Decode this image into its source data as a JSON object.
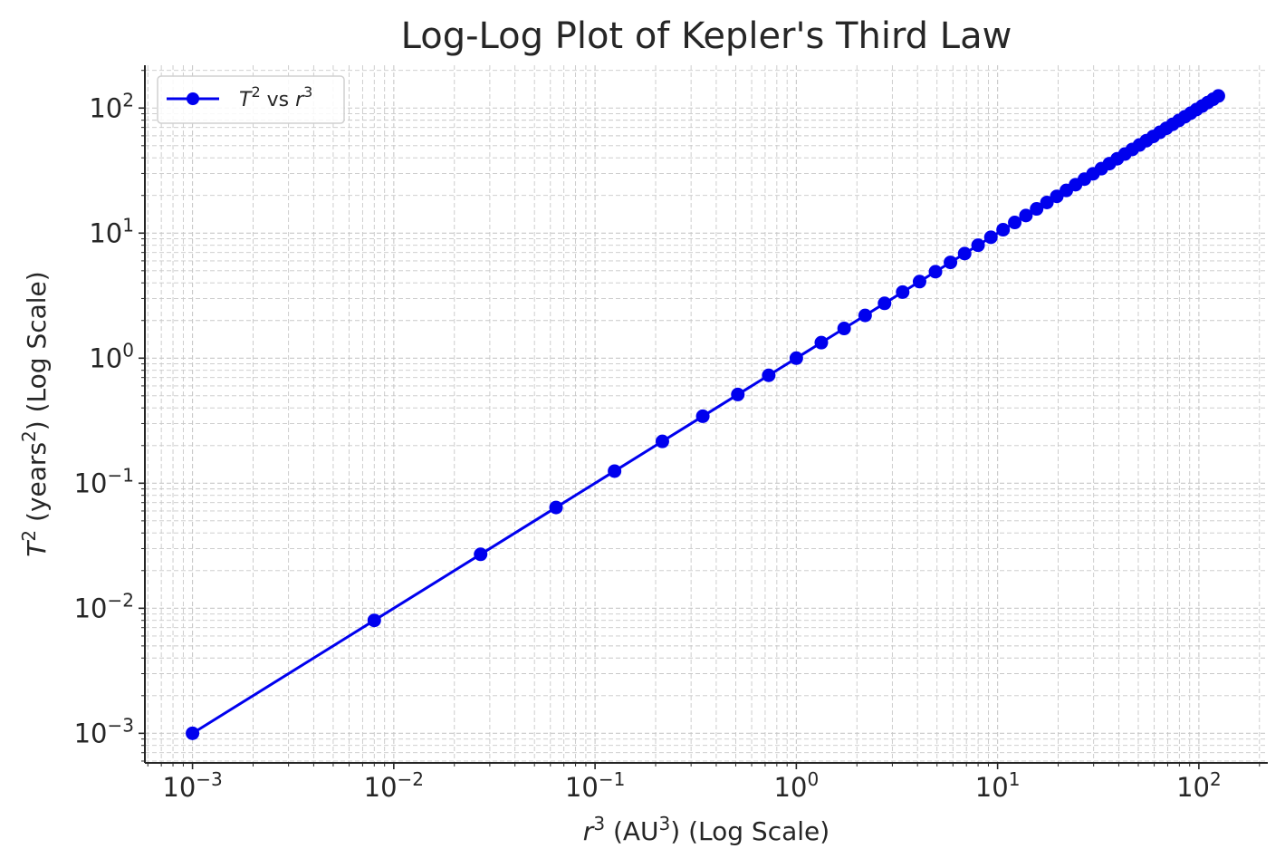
{
  "chart_data": {
    "type": "line",
    "title": "Log-Log Plot of Kepler's Third Law",
    "xlabel": {
      "base": "r",
      "exp": "3",
      "mid": " (AU",
      "mid_exp": "3",
      "tail": ") (Log Scale)"
    },
    "ylabel": {
      "base": "T",
      "exp": "2",
      "mid": " (years",
      "mid_exp": "2",
      "tail": ") (Log Scale)"
    },
    "xscale": "log",
    "yscale": "log",
    "xlim": [
      0.00058,
      220
    ],
    "ylim": [
      0.00058,
      220
    ],
    "x_ticks": [
      {
        "value": 0.001,
        "base": "10",
        "exp": "−3"
      },
      {
        "value": 0.01,
        "base": "10",
        "exp": "−2"
      },
      {
        "value": 0.1,
        "base": "10",
        "exp": "−1"
      },
      {
        "value": 1,
        "base": "10",
        "exp": "0"
      },
      {
        "value": 10,
        "base": "10",
        "exp": "1"
      },
      {
        "value": 100,
        "base": "10",
        "exp": "2"
      }
    ],
    "y_ticks": [
      {
        "value": 0.001,
        "base": "10",
        "exp": "−3"
      },
      {
        "value": 0.01,
        "base": "10",
        "exp": "−2"
      },
      {
        "value": 0.1,
        "base": "10",
        "exp": "−1"
      },
      {
        "value": 1,
        "base": "10",
        "exp": "0"
      },
      {
        "value": 10,
        "base": "10",
        "exp": "1"
      },
      {
        "value": 100,
        "base": "10",
        "exp": "2"
      }
    ],
    "grid": true,
    "legend_position": "top-left",
    "series": [
      {
        "name": {
          "a": "T",
          "a_exp": "2",
          "mid": " vs ",
          "b": "r",
          "b_exp": "3"
        },
        "color": "#0000ee",
        "marker": "circle",
        "x": [
          0.001,
          0.008,
          0.027,
          0.064,
          0.125,
          0.216,
          0.343,
          0.512,
          0.729,
          1,
          1.331,
          1.728,
          2.197,
          2.744,
          3.375,
          4.096,
          4.913,
          5.832,
          6.859,
          8,
          9.261,
          10.648,
          12.167,
          13.824,
          15.625,
          17.576,
          19.683,
          21.952,
          24.389,
          27,
          29.791,
          32.768,
          35.937,
          39.304,
          42.875,
          46.656,
          50.653,
          54.872,
          59.319,
          64,
          68.921,
          74.088,
          79.507,
          85.184,
          91.125,
          97.336,
          103.823,
          110.592,
          117.649,
          125
        ],
        "y": [
          0.001,
          0.008,
          0.027,
          0.064,
          0.125,
          0.216,
          0.343,
          0.512,
          0.729,
          1,
          1.331,
          1.728,
          2.197,
          2.744,
          3.375,
          4.096,
          4.913,
          5.832,
          6.859,
          8,
          9.261,
          10.648,
          12.167,
          13.824,
          15.625,
          17.576,
          19.683,
          21.952,
          24.389,
          27,
          29.791,
          32.768,
          35.937,
          39.304,
          42.875,
          46.656,
          50.653,
          54.872,
          59.319,
          64,
          68.921,
          74.088,
          79.507,
          85.184,
          91.125,
          97.336,
          103.823,
          110.592,
          117.649,
          125
        ]
      }
    ]
  }
}
